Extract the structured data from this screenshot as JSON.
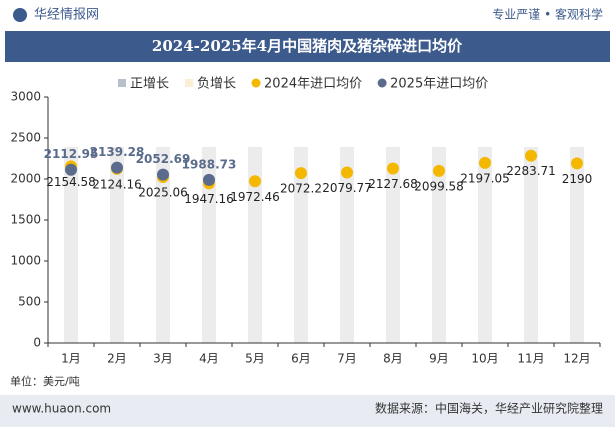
{
  "header": {
    "brand": "华经情报网",
    "slogan": "专业严谨 • 客观科学"
  },
  "chart_data": {
    "type": "line",
    "title": "2024-2025年4月中国猪肉及猪杂碎进口均价",
    "categories": [
      "1月",
      "2月",
      "3月",
      "4月",
      "5月",
      "6月",
      "7月",
      "8月",
      "9月",
      "10月",
      "11月",
      "12月"
    ],
    "bar_legend": [
      {
        "name": "正增长",
        "color": "#b9c0cc"
      },
      {
        "name": "负增长",
        "color": "#fbeed5"
      }
    ],
    "series": [
      {
        "name": "2024年进口均价",
        "color": "#f5b800",
        "values": [
          2154.58,
          2124.16,
          2025.06,
          1947.16,
          1972.46,
          2072.2,
          2079.77,
          2127.68,
          2099.58,
          2197.05,
          2283.71,
          2190
        ]
      },
      {
        "name": "2025年进口均价",
        "color": "#5b6b8c",
        "values": [
          2112.95,
          2139.28,
          2052.69,
          1988.73,
          null,
          null,
          null,
          null,
          null,
          null,
          null,
          null
        ]
      }
    ],
    "ylim": [
      0,
      3000
    ],
    "yticks": [
      0,
      500,
      1000,
      1500,
      2000,
      2500,
      3000
    ],
    "unit": "单位：美元/吨"
  },
  "footer": {
    "site": "www.huaon.com",
    "source": "数据来源：中国海关，华经产业研究院整理"
  }
}
